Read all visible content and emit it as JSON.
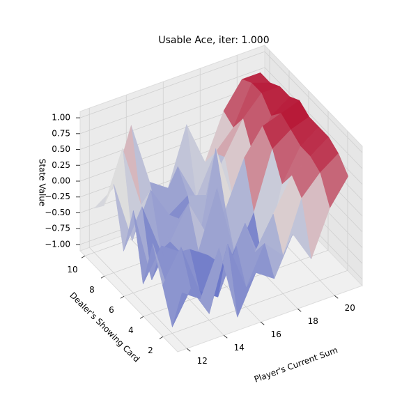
{
  "chart_data": {
    "type": "surface3d",
    "title": "Usable Ace, iter: 1.000",
    "xlabel": "Player's Current Sum",
    "ylabel": "Dealer's Showing Card",
    "zlabel": "State Value",
    "x": [
      12,
      13,
      14,
      15,
      16,
      17,
      18,
      19,
      20,
      21
    ],
    "y": [
      1,
      2,
      3,
      4,
      5,
      6,
      7,
      8,
      9,
      10
    ],
    "z": [
      [
        -0.3,
        -0.5,
        0.2,
        -1,
        -0.4,
        -0.6,
        0.0,
        -0.5,
        0.2,
        0.6
      ],
      [
        -1,
        -0.5,
        -1,
        0,
        -0.8,
        -0.2,
        -0.5,
        0.3,
        0.6,
        0.8
      ],
      [
        -0.5,
        0,
        -0.8,
        -1,
        -0.3,
        -0.5,
        0,
        0.5,
        0.7,
        0.9
      ],
      [
        0,
        -1,
        -0.3,
        -0.5,
        -0.8,
        -0.2,
        -1,
        0.2,
        0.7,
        0.9
      ],
      [
        -0.8,
        -0.3,
        -0.5,
        -0.6,
        0.3,
        -0.9,
        -0.3,
        0.6,
        0.8,
        0.9
      ],
      [
        0.2,
        -1,
        -0.5,
        0,
        -0.6,
        -0.3,
        0.4,
        0.8,
        0.9,
        1.0
      ],
      [
        -0.6,
        0,
        -0.8,
        -0.4,
        -1,
        0.5,
        -0.5,
        0.2,
        0.7,
        0.9
      ],
      [
        0.3,
        -0.7,
        0,
        -0.5,
        -0.3,
        -0.4,
        0.1,
        0.6,
        0.9,
        0.9
      ],
      [
        -0.2,
        0.6,
        -0.4,
        -0.8,
        0,
        -0.6,
        0.0,
        0.3,
        0.9,
        0.8
      ],
      [
        -0.4,
        -0.2,
        0.7,
        -0.3,
        -0.5,
        0.4,
        -0.3,
        0.4,
        0.8,
        0.8
      ]
    ],
    "colormap": [
      "#3b4cc0",
      "#dddddd",
      "#b40426"
    ],
    "xlim": [
      11.5,
      21.5
    ],
    "ylim": [
      0.5,
      10.5
    ],
    "zlim": [
      -1.1,
      1.1
    ],
    "xticks": [
      12,
      14,
      16,
      18,
      20
    ],
    "yticks": [
      2,
      4,
      6,
      8,
      10
    ],
    "zticks": [
      {
        "value": -1,
        "label": "−1.00"
      },
      {
        "value": -0.75,
        "label": "−0.75"
      },
      {
        "value": -0.5,
        "label": "−0.50"
      },
      {
        "value": -0.25,
        "label": "−0.25"
      },
      {
        "value": 0,
        "label": "0.00"
      },
      {
        "value": 0.25,
        "label": "0.25"
      },
      {
        "value": 0.5,
        "label": "0.50"
      },
      {
        "value": 0.75,
        "label": "0.75"
      },
      {
        "value": 1,
        "label": "1.00"
      }
    ],
    "grid": true
  }
}
